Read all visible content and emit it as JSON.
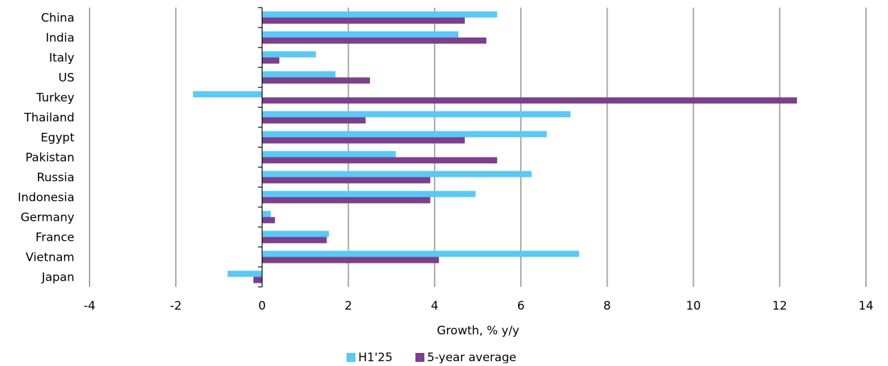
{
  "chart_data": {
    "type": "bar",
    "orientation": "horizontal",
    "categories": [
      "China",
      "India",
      "Italy",
      "US",
      "Turkey",
      "Thailand",
      "Egypt",
      "Pakistan",
      "Russia",
      "Indonesia",
      "Germany",
      "France",
      "Vietnam",
      "Japan"
    ],
    "series": [
      {
        "name": "H1'25",
        "color": "#5BC8F5",
        "values": [
          5.45,
          4.55,
          1.25,
          1.7,
          -1.6,
          7.15,
          6.6,
          3.1,
          6.25,
          4.95,
          0.2,
          1.55,
          7.35,
          -0.8
        ]
      },
      {
        "name": "5-year average",
        "color": "#7B3F8C",
        "values": [
          4.7,
          5.2,
          0.4,
          2.5,
          12.4,
          2.4,
          4.7,
          5.45,
          3.9,
          3.9,
          0.3,
          1.5,
          4.1,
          -0.2
        ]
      }
    ],
    "xlabel": "Growth, % y/y",
    "ylabel": "",
    "xlim": [
      -4,
      14
    ],
    "xticks": [
      "-4",
      "-2",
      "0",
      "2",
      "4",
      "6",
      "8",
      "10",
      "12",
      "14"
    ],
    "grid": "vertical",
    "legend_position": "bottom-center",
    "gridline_color": "#A6A6A6"
  }
}
